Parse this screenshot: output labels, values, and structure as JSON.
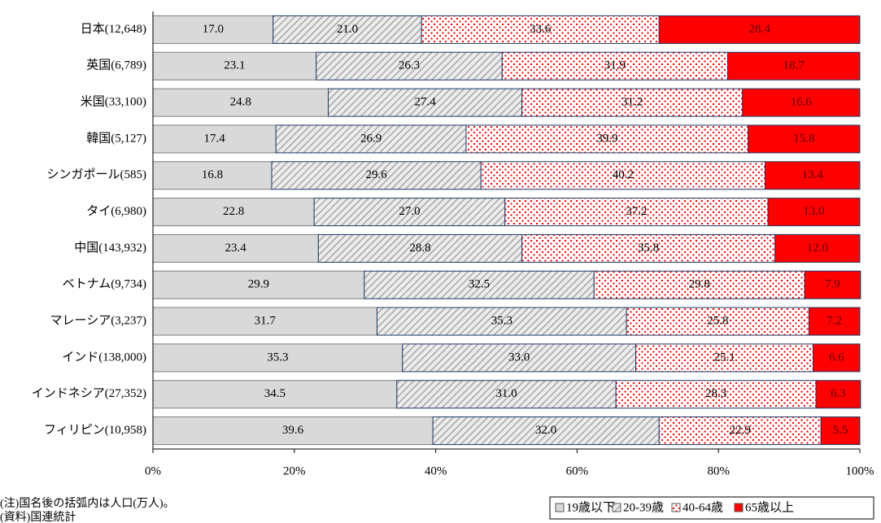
{
  "chart_data": {
    "type": "stacked_barh",
    "categories": [
      "日本(12,648)",
      "英国(6,789)",
      "米国(33,100)",
      "韓国(5,127)",
      "シンガポール(585)",
      "タイ(6,980)",
      "中国(143,932)",
      "ベトナム(9,734)",
      "マレーシア(3,237)",
      "インド(138,000)",
      "インドネシア(27,352)",
      "フィリピン(10,958)"
    ],
    "series": [
      {
        "name": "19歳以下",
        "color": "#d9d9d9",
        "pattern": "solid",
        "values": [
          17.0,
          23.1,
          24.8,
          17.4,
          16.8,
          22.8,
          23.4,
          29.9,
          31.7,
          35.3,
          34.5,
          39.6
        ],
        "value_labels": [
          "17.0",
          "23.1",
          "24.8",
          "17.4",
          "16.8",
          "22.8",
          "23.4",
          "29.9",
          "31.7",
          "35.3",
          "34.5",
          "39.6"
        ]
      },
      {
        "name": "20-39歳",
        "color": "#a6a6a6",
        "pattern": "hatch",
        "values": [
          21.0,
          26.3,
          27.4,
          26.9,
          29.6,
          27.0,
          28.8,
          32.5,
          35.3,
          33.0,
          31.0,
          32.0
        ],
        "value_labels": [
          "21.0",
          "26.3",
          "27.4",
          "26.9",
          "29.6",
          "27.0",
          "28.8",
          "32.5",
          "35.3",
          "33.0",
          "31.0",
          "32.0"
        ]
      },
      {
        "name": "40-64歳",
        "color": "#ff0000",
        "pattern": "dots",
        "values": [
          33.6,
          31.9,
          31.2,
          39.9,
          40.2,
          37.2,
          35.8,
          29.8,
          25.8,
          25.1,
          28.3,
          22.9
        ],
        "value_labels": [
          "33.6",
          "31.9",
          "31.2",
          "39.9",
          "40.2",
          "37.2",
          "35.8",
          "29.8",
          "25.8",
          "25.1",
          "28.3",
          "22.9"
        ]
      },
      {
        "name": "65歳以上",
        "color": "#ff0000",
        "pattern": "solid",
        "values": [
          28.4,
          18.7,
          16.6,
          15.8,
          13.4,
          13.0,
          12.0,
          7.9,
          7.2,
          6.6,
          6.3,
          5.5
        ],
        "value_labels": [
          "28.4",
          "18.7",
          "16.6",
          "15.8",
          "13.4",
          "13.0",
          "12.0",
          "7.9",
          "7.2",
          "6.6",
          "6.3",
          "5.5"
        ]
      }
    ],
    "xlim": [
      0,
      100
    ],
    "xticks": [
      {
        "value": 0,
        "label": "0%"
      },
      {
        "value": 20,
        "label": "20%"
      },
      {
        "value": 40,
        "label": "40%"
      },
      {
        "value": 60,
        "label": "60%"
      },
      {
        "value": 80,
        "label": "80%"
      },
      {
        "value": 100,
        "label": "100%"
      }
    ],
    "legend": "bottom-right",
    "annotations": [
      "(注)国名後の括弧内は人口(万人)。",
      "(資料)国連統計"
    ]
  }
}
